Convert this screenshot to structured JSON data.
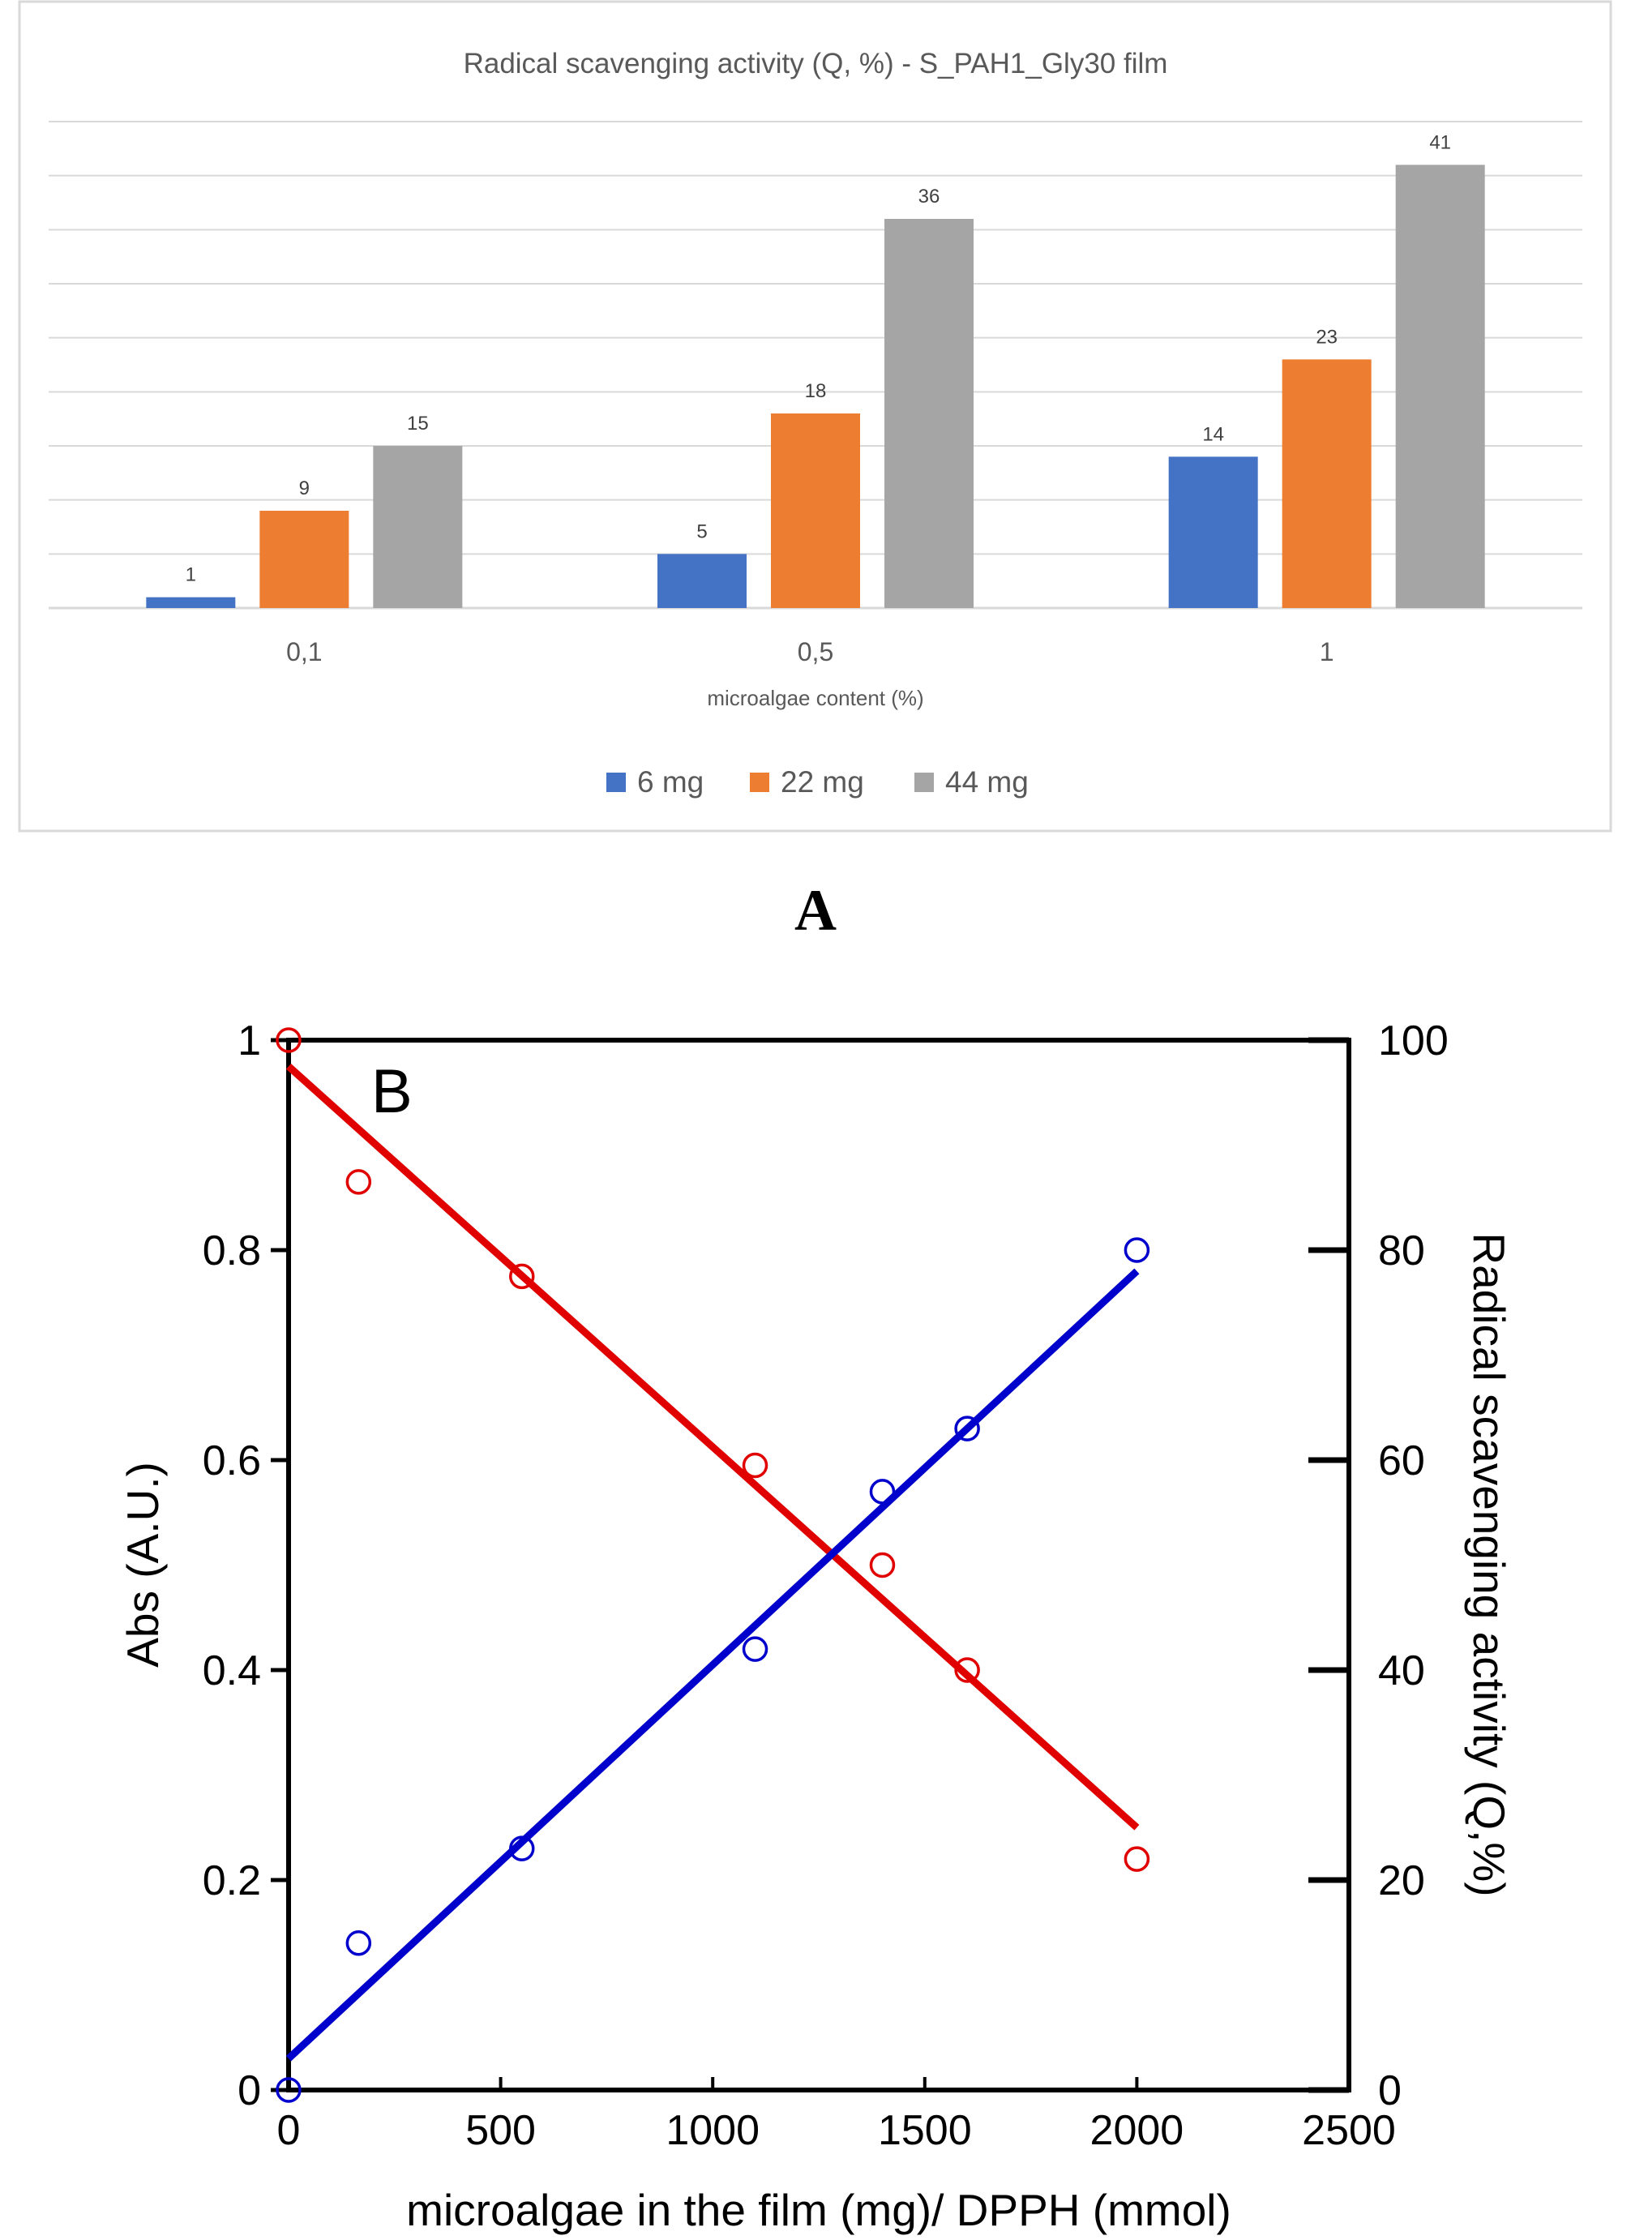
{
  "panel_a_label": "A",
  "chart_data": [
    {
      "type": "bar",
      "title": "Radical scavenging activity (Q, %) - S_PAH1_Gly30 film",
      "xlabel": "microalgae content (%)",
      "ylabel": "",
      "categories": [
        "0,1",
        "0,5",
        "1"
      ],
      "series": [
        {
          "name": "6 mg",
          "color": "#4472c4",
          "values": [
            1,
            5,
            14
          ]
        },
        {
          "name": "22 mg",
          "color": "#ed7d31",
          "values": [
            9,
            18,
            23
          ]
        },
        {
          "name": "44 mg",
          "color": "#a5a5a5",
          "values": [
            15,
            36,
            41
          ]
        }
      ],
      "ylim": [
        0,
        45
      ],
      "grid": true,
      "legend": "bottom-center"
    },
    {
      "type": "scatter",
      "panel_label": "B",
      "xlabel": "microalgae in the film (mg)/ DPPH (mmol)",
      "ylabel": "Abs (A.U.)",
      "y2label": "Radical scavenging activity (Q,%)",
      "xlim": [
        0,
        2500
      ],
      "ylim": [
        0,
        1
      ],
      "y2lim": [
        0,
        100
      ],
      "xticks": [
        "0",
        "500",
        "1000",
        "1500",
        "2000",
        "2500"
      ],
      "yticks": [
        "0",
        "0.2",
        "0.4",
        "0.6",
        "0.8",
        "1"
      ],
      "y2ticks": [
        "0",
        "20",
        "40",
        "60",
        "80",
        "100"
      ],
      "grid": false,
      "series": [
        {
          "name": "Abs",
          "axis": "left",
          "color": "#e00000",
          "x": [
            0,
            165,
            550,
            1100,
            1400,
            1600,
            2000
          ],
          "y": [
            1.0,
            0.865,
            0.775,
            0.595,
            0.5,
            0.4,
            0.22
          ],
          "fit": {
            "x": [
              0,
              2000
            ],
            "y": [
              0.975,
              0.25
            ]
          }
        },
        {
          "name": "Radical scavenging activity",
          "axis": "right",
          "color": "#0000cc",
          "x": [
            0,
            165,
            550,
            1100,
            1400,
            1600,
            2000
          ],
          "y": [
            0,
            14,
            23,
            42,
            57,
            63,
            80
          ],
          "fit": {
            "x": [
              0,
              2000
            ],
            "y": [
              3,
              78
            ]
          }
        }
      ]
    }
  ]
}
